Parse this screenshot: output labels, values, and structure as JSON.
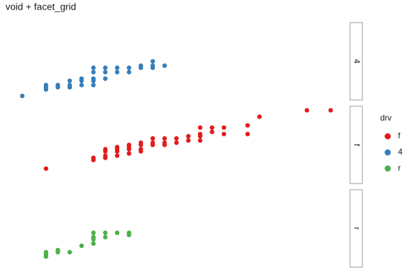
{
  "chart_data": {
    "type": "scatter",
    "title": "void + facet_grid",
    "legend_title": "drv",
    "legend_position": "right",
    "facets": [
      "4",
      "f",
      "r"
    ],
    "xlim": [
      7.7,
      36
    ],
    "ylim": [
      10.1,
      45.9
    ],
    "series": [
      {
        "name": "f",
        "color": "#e41a1c",
        "x": [
          11,
          15,
          15,
          16,
          16,
          16,
          16,
          17,
          17,
          17,
          17,
          18,
          18,
          18,
          18,
          19,
          19,
          19,
          19,
          20,
          20,
          20,
          21,
          21,
          21,
          22,
          22,
          23,
          23,
          24,
          24,
          24,
          24,
          25,
          25,
          26,
          26,
          28,
          28,
          29,
          33,
          35
        ],
        "y": [
          17,
          22,
          21,
          26,
          25,
          23,
          22,
          27,
          26,
          25,
          23,
          28,
          27,
          26,
          24,
          29,
          28,
          26,
          25,
          31,
          29,
          28,
          31,
          29,
          28,
          31,
          29,
          32,
          30,
          36,
          33,
          32,
          30,
          36,
          34,
          36,
          33,
          37,
          33,
          41,
          44,
          44
        ]
      },
      {
        "name": "4",
        "color": "#377eb8",
        "x": [
          9,
          11,
          11,
          11,
          12,
          12,
          13,
          13,
          13,
          14,
          14,
          14,
          15,
          15,
          15,
          15,
          15,
          16,
          16,
          16,
          17,
          17,
          18,
          18,
          19,
          19,
          20,
          20,
          20,
          21
        ],
        "y": [
          12,
          17,
          16,
          15,
          17,
          16,
          19,
          17,
          16,
          20,
          19,
          17,
          25,
          23,
          20,
          19,
          17,
          25,
          23,
          20,
          25,
          23,
          25,
          23,
          26,
          25,
          28,
          26,
          25,
          26
        ]
      },
      {
        "name": "r",
        "color": "#4daf4a",
        "x": [
          11,
          11,
          11,
          12,
          12,
          13,
          14,
          15,
          15,
          15,
          15,
          16,
          16,
          17,
          18,
          18
        ],
        "y": [
          17,
          16,
          15,
          18,
          17,
          17,
          20,
          26,
          24,
          23,
          21,
          26,
          24,
          26,
          26,
          25
        ]
      }
    ]
  }
}
